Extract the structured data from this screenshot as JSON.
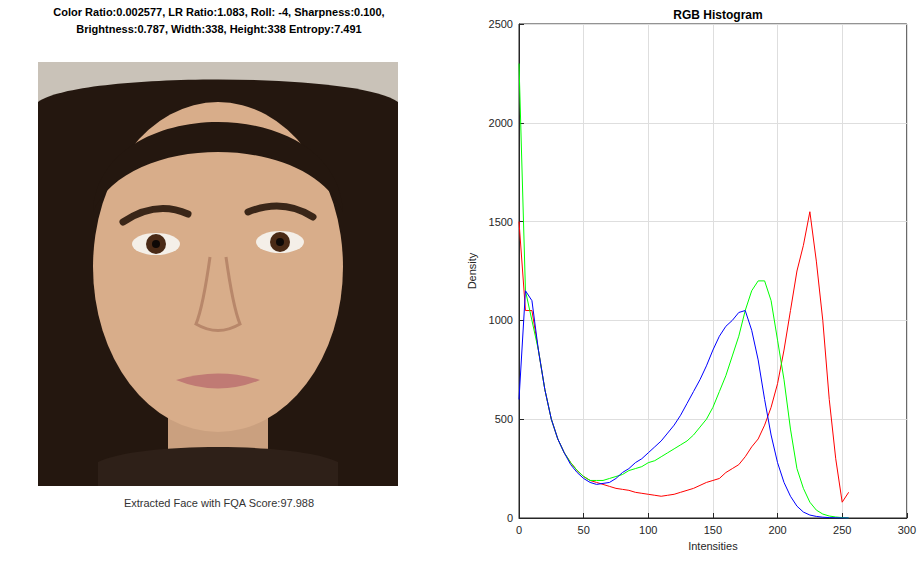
{
  "image_panel": {
    "title_lines": [
      "Color Ratio:0.002577, LR Ratio:1.083, Roll: -4, Sharpness:0.100,",
      "Brightness:0.787, Width:338, Height:338 Entropy:7.491"
    ],
    "caption": "Extracted Face with FQA Score:97.988"
  },
  "chart_data": {
    "type": "line",
    "title": "RGB Histogram",
    "x_label": "Intensities",
    "y_label": "Density",
    "x": [
      0,
      5,
      10,
      15,
      20,
      25,
      30,
      35,
      40,
      45,
      50,
      55,
      60,
      65,
      70,
      75,
      80,
      85,
      90,
      95,
      100,
      105,
      110,
      115,
      120,
      125,
      130,
      135,
      140,
      145,
      150,
      155,
      160,
      165,
      170,
      175,
      180,
      185,
      190,
      195,
      200,
      205,
      210,
      215,
      220,
      225,
      230,
      235,
      240,
      245,
      250,
      255
    ],
    "series": [
      {
        "color": "#ff0000",
        "values": [
          1500,
          1050,
          1050,
          850,
          650,
          500,
          400,
          330,
          280,
          240,
          210,
          190,
          180,
          170,
          160,
          150,
          145,
          140,
          130,
          125,
          120,
          115,
          110,
          115,
          120,
          130,
          140,
          150,
          165,
          180,
          190,
          200,
          230,
          250,
          270,
          310,
          360,
          400,
          470,
          560,
          680,
          850,
          1050,
          1250,
          1380,
          1550,
          1300,
          1000,
          600,
          300,
          80,
          130
        ]
      },
      {
        "color": "#00ff00",
        "values": [
          2300,
          1150,
          1000,
          850,
          650,
          500,
          400,
          330,
          280,
          240,
          210,
          190,
          190,
          190,
          200,
          210,
          220,
          240,
          250,
          260,
          280,
          290,
          310,
          330,
          350,
          370,
          390,
          420,
          460,
          500,
          560,
          640,
          720,
          820,
          920,
          1050,
          1150,
          1200,
          1200,
          1100,
          900,
          700,
          450,
          250,
          150,
          80,
          40,
          20,
          10,
          5,
          2,
          0
        ]
      },
      {
        "color": "#0000ff",
        "values": [
          600,
          1150,
          1100,
          850,
          650,
          500,
          400,
          330,
          270,
          230,
          200,
          180,
          170,
          175,
          180,
          200,
          230,
          250,
          280,
          300,
          330,
          360,
          390,
          430,
          470,
          520,
          580,
          640,
          700,
          770,
          850,
          920,
          970,
          1000,
          1040,
          1050,
          950,
          800,
          600,
          420,
          280,
          180,
          110,
          60,
          30,
          15,
          8,
          4,
          2,
          1,
          0,
          0
        ]
      }
    ],
    "xlim": [
      0,
      300
    ],
    "xticks": [
      0,
      50,
      100,
      150,
      200,
      250,
      300
    ],
    "ylim": [
      0,
      2500
    ],
    "yticks": [
      0,
      500,
      1000,
      1500,
      2000,
      2500
    ],
    "grid": true
  }
}
